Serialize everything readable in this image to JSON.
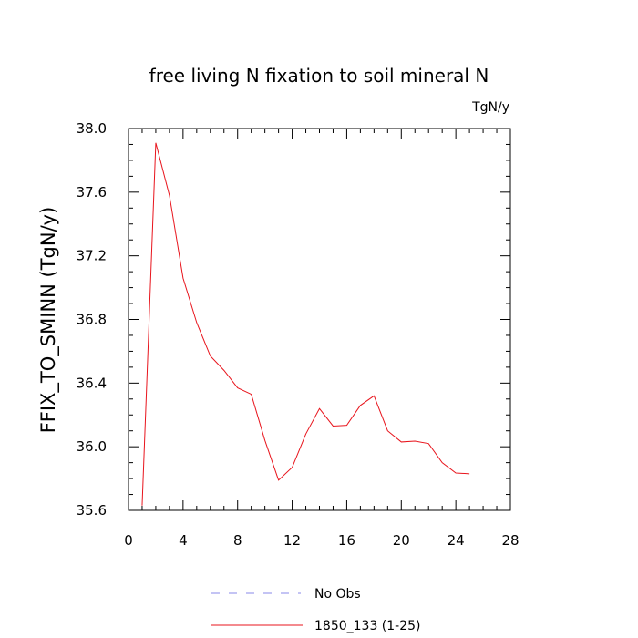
{
  "chart_data": {
    "type": "line",
    "title": "free living N fixation to soil mineral N",
    "units_label": "TgN/y",
    "ylabel": "FFIX_TO_SMINN  (TgN/y)",
    "xlabel": "",
    "xlim": [
      0,
      28
    ],
    "ylim": [
      35.6,
      38.0
    ],
    "xticks": [
      0,
      4,
      8,
      12,
      16,
      20,
      24,
      28
    ],
    "yticks": [
      35.6,
      36.0,
      36.4,
      36.8,
      37.2,
      37.6,
      38.0
    ],
    "xtick_labels": [
      "0",
      "4",
      "8",
      "12",
      "16",
      "20",
      "24",
      "28"
    ],
    "ytick_labels": [
      "35.6",
      "36.0",
      "36.4",
      "36.8",
      "37.2",
      "37.6",
      "38.0"
    ],
    "grid": false,
    "legend_position": "bottom",
    "series": [
      {
        "name": "1850_133 (1-25)",
        "color": "#e8141c",
        "x": [
          1,
          2,
          3,
          4,
          5,
          6,
          7,
          8,
          9,
          10,
          11,
          12,
          13,
          14,
          15,
          16,
          17,
          18,
          19,
          20,
          21,
          22,
          23,
          24,
          25
        ],
        "values": [
          35.63,
          37.91,
          37.58,
          37.06,
          36.78,
          36.57,
          36.48,
          36.37,
          36.33,
          36.04,
          35.79,
          35.87,
          36.08,
          36.24,
          36.13,
          36.135,
          36.26,
          36.32,
          36.1,
          36.03,
          36.035,
          36.02,
          35.9,
          35.835,
          35.83
        ]
      }
    ],
    "legend": [
      {
        "label": "No Obs",
        "color": "#8888e8",
        "style": "dashed"
      },
      {
        "label": "1850_133 (1-25)",
        "color": "#e8141c",
        "style": "solid"
      }
    ]
  }
}
